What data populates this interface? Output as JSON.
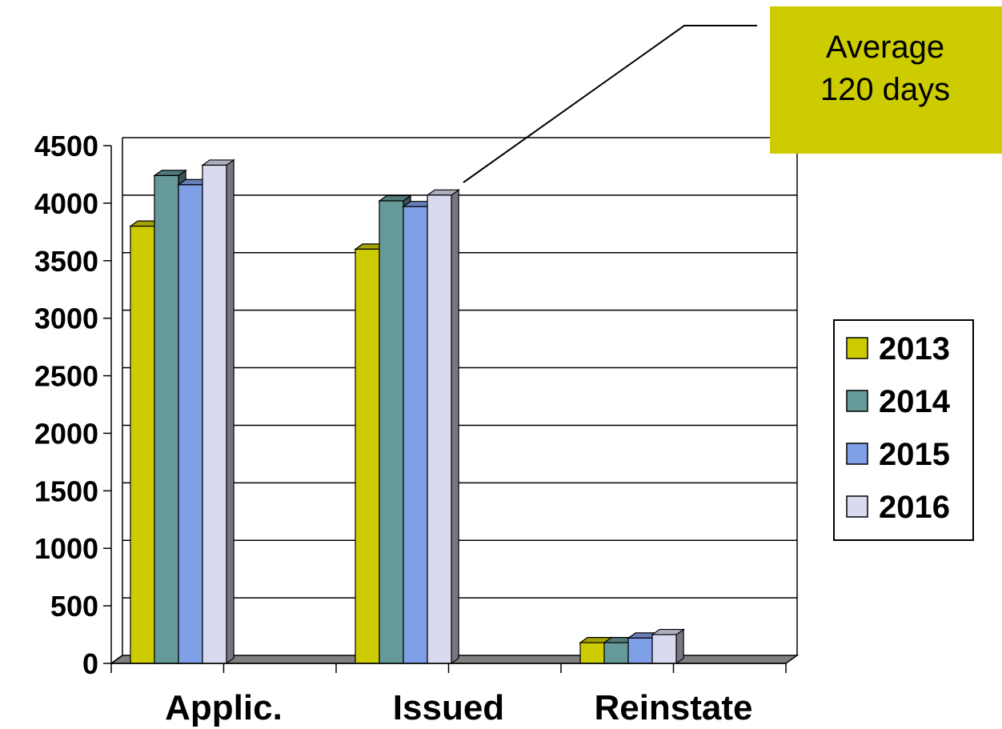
{
  "chart_data": {
    "type": "bar",
    "categories": [
      "Applic.",
      "Issued",
      "Reinstate"
    ],
    "series": [
      {
        "name": "2013",
        "color": "#cccc00",
        "values": [
          3800,
          3600,
          180
        ]
      },
      {
        "name": "2014",
        "color": "#669999",
        "values": [
          4240,
          4020,
          180
        ]
      },
      {
        "name": "2015",
        "color": "#7f9fe6",
        "values": [
          4160,
          3970,
          220
        ]
      },
      {
        "name": "2016",
        "color": "#d9d9ef",
        "values": [
          4330,
          4070,
          250
        ]
      }
    ],
    "ylim": [
      0,
      4500
    ],
    "yticks": [
      0,
      500,
      1000,
      1500,
      2000,
      2500,
      3000,
      3500,
      4000,
      4500
    ],
    "grid": true,
    "legend": "right",
    "three_d": true,
    "annotation": {
      "lines": [
        "Average",
        "120 days"
      ],
      "target": "Issued",
      "box_color": "#cccc00"
    }
  }
}
